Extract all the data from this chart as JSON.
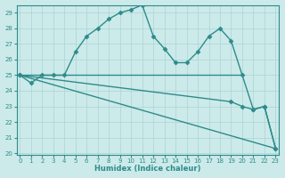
{
  "line1_x": [
    0,
    1,
    2,
    3,
    4,
    5,
    6,
    7,
    8,
    9,
    10,
    11,
    12,
    13,
    14,
    15,
    16,
    17,
    18,
    19,
    20,
    21,
    22,
    23
  ],
  "line1_y": [
    25.0,
    24.5,
    25.0,
    25.0,
    25.0,
    26.5,
    27.5,
    28.0,
    28.6,
    29.0,
    29.2,
    29.5,
    27.5,
    26.7,
    25.8,
    25.8,
    26.5,
    27.5,
    28.0,
    27.2,
    25.0,
    22.8,
    23.0,
    20.3
  ],
  "line2_x": [
    0,
    14,
    20
  ],
  "line2_y": [
    25.0,
    25.0,
    25.0
  ],
  "line3_x": [
    0,
    19,
    20,
    21,
    22,
    23
  ],
  "line3_y": [
    25.0,
    23.3,
    23.0,
    22.8,
    23.0,
    20.3
  ],
  "line4_x": [
    0,
    23
  ],
  "line4_y": [
    25.0,
    20.3
  ],
  "color": "#2e8b8b",
  "bg_color": "#cceaea",
  "grid_color": "#aad4d4",
  "xlabel": "Humidex (Indice chaleur)",
  "xlim": [
    0,
    23
  ],
  "ylim": [
    20,
    29.5
  ],
  "yticks": [
    20,
    21,
    22,
    23,
    24,
    25,
    26,
    27,
    28,
    29
  ],
  "xticks": [
    0,
    1,
    2,
    3,
    4,
    5,
    6,
    7,
    8,
    9,
    10,
    11,
    12,
    13,
    14,
    15,
    16,
    17,
    18,
    19,
    20,
    21,
    22,
    23
  ],
  "marker": "D",
  "markersize": 2.5,
  "linewidth": 1.0,
  "tick_fontsize": 5.0,
  "xlabel_fontsize": 6.0
}
